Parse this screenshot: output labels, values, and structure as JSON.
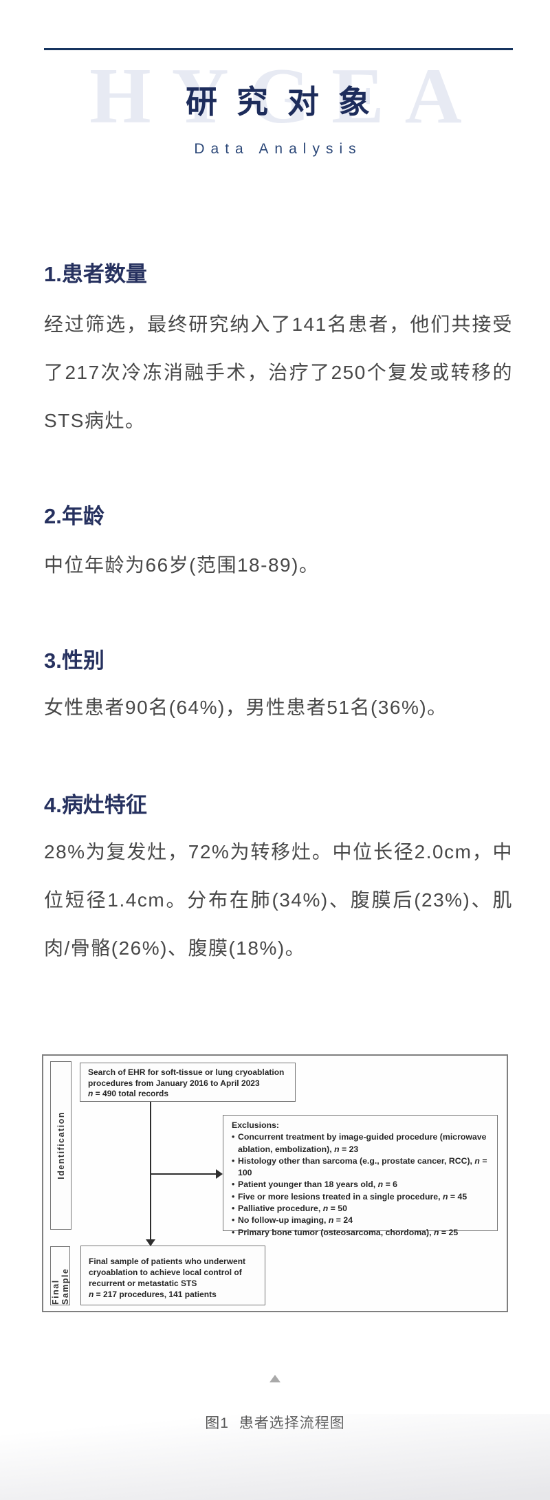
{
  "header": {
    "watermark": "HYGEA",
    "title": "研究对象",
    "subtitle": "Data Analysis"
  },
  "sections": [
    {
      "heading": "1.患者数量",
      "body": "经过筛选，最终研究纳入了141名患者，他们共接受了217次冷冻消融手术，治疗了250个复发或转移的STS病灶。"
    },
    {
      "heading": "2.年龄",
      "body": "中位年龄为66岁(范围18-89)。"
    },
    {
      "heading": "3.性别",
      "body": "女性患者90名(64%)，男性患者51名(36%)。"
    },
    {
      "heading": "4.病灶特征",
      "body": "28%为复发灶，72%为转移灶。中位长径2.0cm，中位短径1.4cm。分布在肺(34%)、腹膜后(23%)、肌肉/骨骼(26%)、腹膜(18%)。"
    }
  ],
  "figure": {
    "stage_labels": {
      "identification": "Identification",
      "final_sample": "Final Sample"
    },
    "search_box": {
      "text": "Search of EHR for soft-tissue or lung cryoablation procedures from January 2016 to April 2023\nn = 490 total records"
    },
    "exclusions": {
      "title": "Exclusions:",
      "items": [
        "Concurrent treatment by image-guided procedure (microwave ablation, embolization), n = 23",
        "Histology other than sarcoma (e.g., prostate cancer, RCC), n = 100",
        "Patient younger than 18 years old, n = 6",
        "Five or more lesions treated in a single procedure, n = 45",
        "Palliative procedure, n = 50",
        "No follow-up imaging, n = 24",
        "Primary bone tumor (osteosarcoma, chordoma), n = 25"
      ]
    },
    "final_box": {
      "text": "Final sample of patients who underwent cryoablation to achieve local control of recurrent or metastatic STS\nn = 217 procedures, 141 patients"
    },
    "caption": "图1 患者选择流程图"
  },
  "colors": {
    "accent_navy": "#1d2c5b",
    "rule_navy": "#16345f",
    "subtitle_navy": "#2a4677",
    "body_gray": "#484848",
    "watermark_blue": "#e7eaf3",
    "figure_border_gray": "#7f7f7f",
    "triangle_gray": "#a9a9a9"
  }
}
